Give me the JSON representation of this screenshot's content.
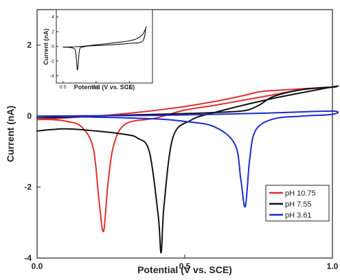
{
  "chart_data": [
    {
      "type": "line",
      "title": "",
      "xlabel": "Potential (V vs. SCE)",
      "ylabel": "Current (nA)",
      "xlim": [
        0.0,
        1.0
      ],
      "ylim": [
        -4,
        3
      ],
      "x_ticks": [
        "0.0",
        "0.5",
        "1.0"
      ],
      "y_ticks": [
        "-4",
        "-2",
        "0",
        "2"
      ],
      "legend_position": "bottom-right",
      "series": [
        {
          "name": "pH 10.75",
          "color": "#e03030",
          "forward_x": [
            0.0,
            0.1,
            0.2,
            0.3,
            0.4,
            0.5,
            0.6,
            0.7,
            0.75,
            0.8,
            0.9,
            1.0
          ],
          "forward_y": [
            -0.1,
            -0.05,
            0.0,
            0.07,
            0.16,
            0.27,
            0.41,
            0.58,
            0.68,
            0.72,
            0.77,
            0.81
          ],
          "reverse_x": [
            1.0,
            0.9,
            0.8,
            0.7,
            0.6,
            0.5,
            0.4,
            0.3,
            0.26,
            0.24,
            0.225,
            0.21,
            0.19,
            0.15,
            0.1,
            0.05,
            0.0
          ],
          "reverse_y": [
            0.81,
            0.75,
            0.6,
            0.45,
            0.3,
            0.17,
            -0.06,
            -0.22,
            -0.8,
            -1.9,
            -3.25,
            -2.4,
            -0.9,
            -0.3,
            -0.15,
            -0.1,
            -0.1
          ]
        },
        {
          "name": "pH 7.55",
          "color": "#111111",
          "forward_x": [
            0.0,
            0.1,
            0.2,
            0.3,
            0.4,
            0.5,
            0.6,
            0.7,
            0.75,
            0.8,
            0.9,
            1.0
          ],
          "forward_y": [
            -0.05,
            -0.03,
            0.0,
            0.03,
            0.05,
            0.07,
            0.1,
            0.15,
            0.3,
            0.55,
            0.75,
            0.82
          ],
          "reverse_x": [
            1.0,
            0.8,
            0.6,
            0.52,
            0.46,
            0.43,
            0.42,
            0.41,
            0.38,
            0.34,
            0.3,
            0.2,
            0.1,
            0.05,
            0.0
          ],
          "reverse_y": [
            0.82,
            0.5,
            0.1,
            -0.12,
            -0.6,
            -2.5,
            -3.85,
            -2.8,
            -1.0,
            -0.62,
            -0.52,
            -0.42,
            -0.36,
            -0.38,
            -0.42
          ]
        },
        {
          "name": "pH 3.61",
          "color": "#1a2bcc",
          "forward_x": [
            0.0,
            0.2,
            0.4,
            0.6,
            0.8,
            1.0
          ],
          "forward_y": [
            0.0,
            0.01,
            0.02,
            0.05,
            0.09,
            0.14
          ],
          "reverse_x": [
            1.0,
            0.9,
            0.8,
            0.74,
            0.72,
            0.705,
            0.69,
            0.67,
            0.6,
            0.5,
            0.4,
            0.2,
            0.0
          ],
          "reverse_y": [
            0.05,
            0.0,
            -0.08,
            -0.4,
            -1.2,
            -2.55,
            -1.8,
            -0.8,
            -0.3,
            -0.15,
            -0.08,
            -0.03,
            0.0
          ]
        }
      ]
    },
    {
      "type": "line",
      "title": "",
      "xlabel": "Potential (V vs. SCE)",
      "ylabel": "Current (nA)",
      "xlim": [
        -0.1,
        1.35
      ],
      "ylim": [
        -5,
        5
      ],
      "x_ticks": [
        "0.0",
        "0.5",
        "1.0"
      ],
      "y_ticks": [
        "-4",
        "-2",
        "0",
        "2",
        "4"
      ],
      "series": [
        {
          "color": "#111111",
          "forward_x": [
            0.0,
            0.2,
            0.4,
            0.6,
            0.8,
            1.0,
            1.1,
            1.2,
            1.25
          ],
          "forward_y": [
            -0.1,
            -0.05,
            0.1,
            0.3,
            0.5,
            0.75,
            1.0,
            1.6,
            2.5
          ],
          "reverse_x": [
            1.25,
            1.2,
            1.0,
            0.8,
            0.6,
            0.4,
            0.3,
            0.25,
            0.22,
            0.2,
            0.18,
            0.1,
            0.0
          ],
          "reverse_y": [
            2.5,
            0.7,
            0.4,
            0.25,
            0.15,
            0.05,
            -0.1,
            -0.5,
            -3.2,
            -1.5,
            -0.4,
            -0.15,
            -0.1
          ]
        }
      ]
    }
  ]
}
